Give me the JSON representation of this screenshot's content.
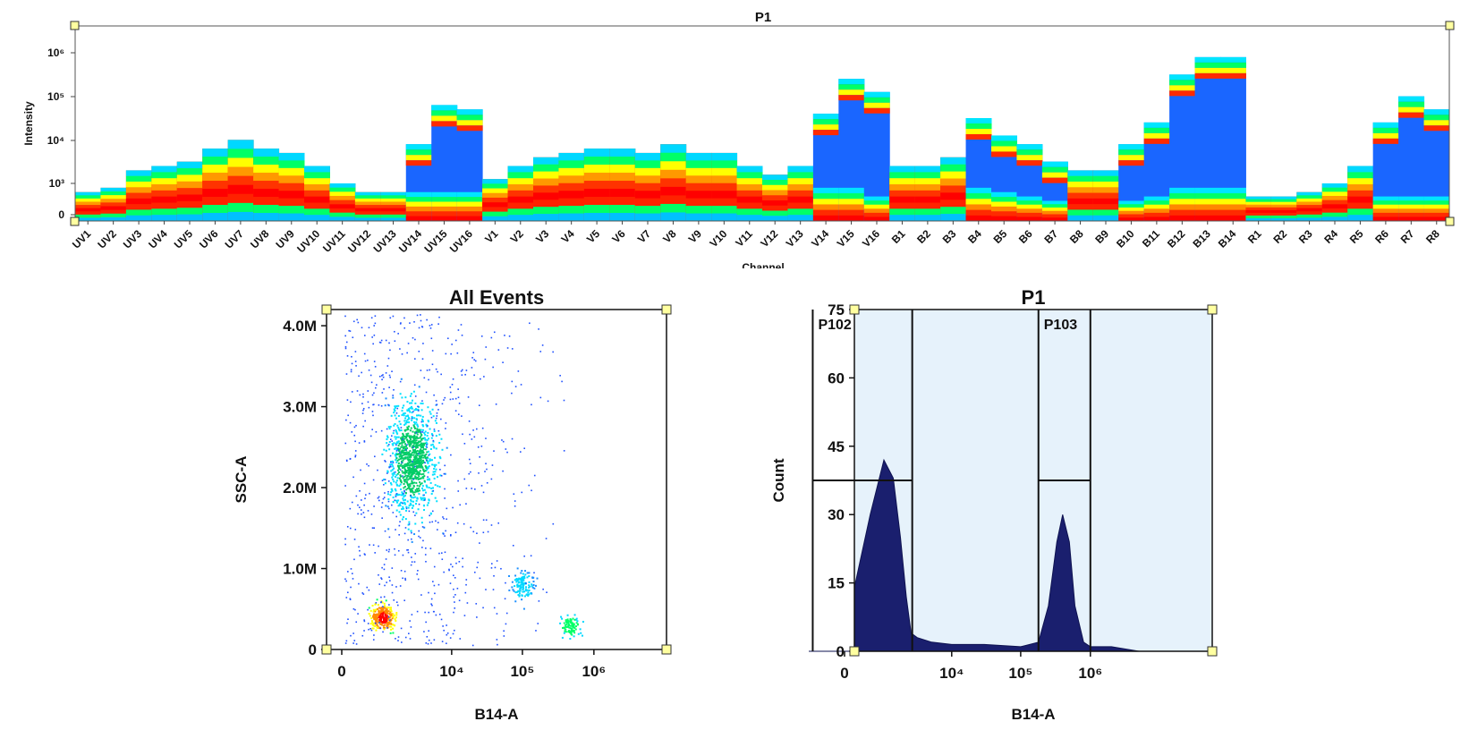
{
  "chart_data": [
    {
      "type": "heatmap",
      "title": "P1",
      "xlabel": "Channel",
      "ylabel": "Intensity",
      "y_scale": "log",
      "y_ticks": [
        "0",
        "10³",
        "10⁴",
        "10⁵",
        "10⁶"
      ],
      "categories": [
        "UV1",
        "UV2",
        "UV3",
        "UV4",
        "UV5",
        "UV6",
        "UV7",
        "UV8",
        "UV9",
        "UV10",
        "UV11",
        "UV12",
        "UV13",
        "UV14",
        "UV15",
        "UV16",
        "V1",
        "V2",
        "V3",
        "V4",
        "V5",
        "V6",
        "V7",
        "V8",
        "V9",
        "V10",
        "V11",
        "V12",
        "V13",
        "V14",
        "V15",
        "V16",
        "B1",
        "B2",
        "B3",
        "B4",
        "B5",
        "B6",
        "B7",
        "B8",
        "B9",
        "B10",
        "B11",
        "B12",
        "B13",
        "B14",
        "R1",
        "R2",
        "R3",
        "R4",
        "R5",
        "R6",
        "R7",
        "R8"
      ],
      "series": [
        {
          "values_top_log10": [
            2.8,
            2.9,
            3.3,
            3.4,
            3.5,
            3.8,
            4.0,
            3.8,
            3.7,
            3.4,
            3.0,
            2.8,
            2.8,
            3.9,
            4.8,
            4.7,
            3.1,
            3.4,
            3.6,
            3.7,
            3.8,
            3.8,
            3.7,
            3.9,
            3.7,
            3.7,
            3.4,
            3.2,
            3.4,
            4.6,
            5.4,
            5.1,
            3.4,
            3.4,
            3.6,
            4.5,
            4.1,
            3.9,
            3.5,
            3.3,
            3.3,
            3.9,
            4.4,
            5.5,
            5.9,
            5.9,
            2.7,
            2.7,
            2.8,
            3.0,
            3.4,
            4.4,
            5.0,
            4.7
          ],
          "values_mid_log10": [
            2.4,
            2.5,
            2.9,
            3.1,
            3.2,
            3.4,
            3.6,
            3.4,
            3.3,
            3.0,
            2.6,
            2.6,
            2.6,
            2.8,
            2.8,
            2.8,
            2.6,
            3.0,
            3.2,
            3.4,
            3.5,
            3.5,
            3.4,
            3.4,
            3.2,
            3.2,
            3.0,
            2.7,
            2.8,
            2.9,
            2.9,
            2.7,
            3.0,
            3.0,
            3.1,
            2.9,
            2.8,
            2.7,
            2.6,
            2.6,
            2.6,
            2.6,
            2.7,
            2.9,
            2.9,
            2.9,
            2.6,
            2.6,
            2.6,
            2.6,
            2.7,
            2.7,
            2.7,
            2.7
          ]
        }
      ]
    },
    {
      "type": "scatter",
      "title": "All Events",
      "xlabel": "B14-A",
      "ylabel": "SSC-A",
      "x_scale": "biexponential",
      "x_ticks": [
        "0",
        "10⁴",
        "10⁵",
        "10⁶"
      ],
      "y_ticks": [
        "0",
        "1.0M",
        "2.0M",
        "3.0M",
        "4.0M"
      ],
      "ylim": [
        0,
        4200000
      ],
      "clusters": [
        {
          "x": 800,
          "y": 400000,
          "density": "high"
        },
        {
          "x": 2500,
          "y": 2350000,
          "density": "medium"
        },
        {
          "x": 100000,
          "y": 800000,
          "density": "low"
        },
        {
          "x": 450000,
          "y": 300000,
          "density": "low"
        }
      ]
    },
    {
      "type": "area",
      "title": "P1",
      "xlabel": "B14-A",
      "ylabel": "Count",
      "x_scale": "biexponential",
      "x_ticks": [
        "0",
        "10⁴",
        "10⁵",
        "10⁶"
      ],
      "y_ticks": [
        "0",
        "15",
        "30",
        "45",
        "60",
        "75"
      ],
      "ylim": [
        0,
        75
      ],
      "gates": [
        {
          "name": "P102",
          "from": -800,
          "to": 2500
        },
        {
          "name": "P103",
          "from": 180000,
          "to": 1000000
        }
      ],
      "series": [
        {
          "x": [
            -900,
            -400,
            0,
            400,
            800,
            1200,
            1600,
            2000,
            2400,
            3000,
            5000,
            10000,
            30000,
            100000,
            180000,
            250000,
            330000,
            400000,
            500000,
            600000,
            800000,
            1000000,
            2000000,
            5000000
          ],
          "values": [
            0,
            4,
            14,
            30,
            42,
            38,
            25,
            12,
            4,
            3,
            2,
            1.5,
            1.5,
            1,
            2,
            10,
            24,
            30,
            24,
            10,
            2,
            1,
            1,
            0
          ]
        }
      ]
    }
  ]
}
